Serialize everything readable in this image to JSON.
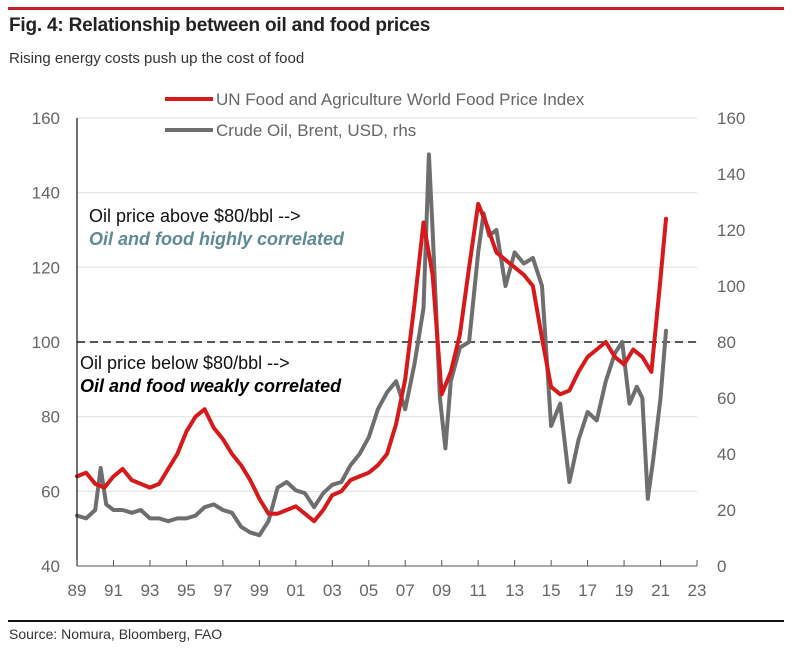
{
  "header": {
    "title": "Fig. 4: Relationship between oil and food prices",
    "subtitle": "Rising energy costs push up the cost of food"
  },
  "footer": {
    "source": "Source: Nomura, Bloomberg, FAO"
  },
  "colors": {
    "accent_rule": "#c8202a",
    "food_series": "#d7191c",
    "oil_series": "#6e6e6e",
    "gridline": "#e3e3e3",
    "axis": "#222222",
    "annotation_high": "#5e8a92",
    "annotation_low": "#000000"
  },
  "chart_data": {
    "type": "line",
    "title": "Fig. 4: Relationship between oil and food prices",
    "subtitle": "Rising energy costs push up the cost of food",
    "xlabel": "",
    "ylabel_left": "",
    "ylabel_right": "",
    "x_ticks": [
      "89",
      "91",
      "93",
      "95",
      "97",
      "99",
      "01",
      "03",
      "05",
      "07",
      "09",
      "11",
      "13",
      "15",
      "17",
      "19",
      "21",
      "23"
    ],
    "x_range": [
      1989,
      2023
    ],
    "y_left": {
      "ticks": [
        40,
        60,
        80,
        100,
        120,
        140,
        160
      ],
      "range": [
        40,
        160
      ]
    },
    "y_right": {
      "ticks": [
        0,
        20,
        40,
        60,
        80,
        100,
        120,
        140,
        160
      ],
      "range": [
        0,
        160
      ]
    },
    "grid": true,
    "legend_position": "top-center",
    "series": [
      {
        "name": "UN Food and Agriculture World Food Price Index",
        "axis": "left",
        "x": [
          1989.0,
          1989.5,
          1990.0,
          1990.5,
          1991.0,
          1991.5,
          1992.0,
          1992.5,
          1993.0,
          1993.5,
          1994.0,
          1994.5,
          1995.0,
          1995.5,
          1996.0,
          1996.5,
          1997.0,
          1997.5,
          1998.0,
          1998.5,
          1999.0,
          1999.5,
          2000.0,
          2000.5,
          2001.0,
          2001.5,
          2002.0,
          2002.5,
          2003.0,
          2003.5,
          2004.0,
          2004.5,
          2005.0,
          2005.5,
          2006.0,
          2006.5,
          2007.0,
          2007.5,
          2008.0,
          2008.5,
          2009.0,
          2009.5,
          2010.0,
          2010.5,
          2011.0,
          2011.5,
          2012.0,
          2012.5,
          2013.0,
          2013.5,
          2014.0,
          2014.5,
          2015.0,
          2015.5,
          2016.0,
          2016.5,
          2017.0,
          2017.5,
          2018.0,
          2018.5,
          2019.0,
          2019.5,
          2020.0,
          2020.5,
          2021.0,
          2021.3
        ],
        "values": [
          64,
          65,
          62,
          61,
          64,
          66,
          63,
          62,
          61,
          62,
          66,
          70,
          76,
          80,
          82,
          77,
          74,
          70,
          67,
          63,
          58,
          54,
          54,
          55,
          56,
          54,
          52,
          55,
          59,
          60,
          63,
          64,
          65,
          67,
          70,
          78,
          90,
          110,
          132,
          118,
          86,
          92,
          102,
          120,
          137,
          131,
          124,
          122,
          120,
          118,
          115,
          101,
          88,
          86,
          87,
          92,
          96,
          98,
          100,
          96,
          94,
          98,
          96,
          92,
          117,
          133
        ]
      },
      {
        "name": "Crude Oil, Brent, USD, rhs",
        "axis": "right",
        "x": [
          1989.0,
          1989.5,
          1990.0,
          1990.3,
          1990.6,
          1991.0,
          1991.5,
          1992.0,
          1992.5,
          1993.0,
          1993.5,
          1994.0,
          1994.5,
          1995.0,
          1995.5,
          1996.0,
          1996.5,
          1997.0,
          1997.5,
          1998.0,
          1998.5,
          1999.0,
          1999.5,
          2000.0,
          2000.5,
          2001.0,
          2001.5,
          2002.0,
          2002.5,
          2003.0,
          2003.5,
          2004.0,
          2004.5,
          2005.0,
          2005.5,
          2006.0,
          2006.5,
          2007.0,
          2007.5,
          2008.0,
          2008.3,
          2008.5,
          2008.9,
          2009.2,
          2009.5,
          2010.0,
          2010.5,
          2011.0,
          2011.3,
          2011.6,
          2012.0,
          2012.5,
          2013.0,
          2013.5,
          2014.0,
          2014.5,
          2015.0,
          2015.5,
          2016.0,
          2016.5,
          2017.0,
          2017.5,
          2018.0,
          2018.5,
          2018.9,
          2019.3,
          2019.7,
          2020.0,
          2020.3,
          2020.6,
          2021.0,
          2021.3
        ],
        "values": [
          18,
          17,
          20,
          35,
          22,
          20,
          20,
          19,
          20,
          17,
          17,
          16,
          17,
          17,
          18,
          21,
          22,
          20,
          19,
          14,
          12,
          11,
          16,
          28,
          30,
          27,
          26,
          21,
          26,
          29,
          30,
          36,
          40,
          46,
          56,
          62,
          66,
          56,
          72,
          92,
          147,
          120,
          60,
          42,
          66,
          78,
          80,
          112,
          126,
          118,
          120,
          100,
          112,
          108,
          110,
          100,
          50,
          58,
          30,
          45,
          55,
          52,
          66,
          76,
          80,
          58,
          64,
          60,
          24,
          38,
          60,
          84
        ]
      }
    ],
    "reference_line": {
      "axis": "left",
      "value": 100,
      "style": "dashed"
    },
    "annotations": [
      {
        "line1": "Oil price above $80/bbl -->",
        "line2": "Oil and food highly correlated"
      },
      {
        "line1": "Oil price below $80/bbl -->",
        "line2": "Oil and food weakly correlated"
      }
    ]
  }
}
